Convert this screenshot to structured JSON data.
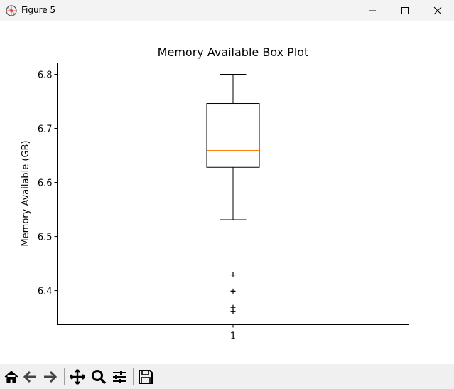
{
  "window": {
    "title": "Figure 5",
    "app_icon": "matplotlib-figure-icon",
    "controls": [
      "minimize-icon",
      "maximize-icon",
      "close-icon"
    ]
  },
  "toolbar": {
    "buttons": [
      "home-icon",
      "back-arrow-icon",
      "forward-arrow-icon",
      "pan-move-icon",
      "zoom-magnifier-icon",
      "configure-subplots-icon",
      "save-floppy-icon"
    ]
  },
  "chart_data": {
    "type": "box",
    "title": "Memory Available Box Plot",
    "xlabel": "",
    "ylabel": "Memory Available (GB)",
    "categories": [
      "1"
    ],
    "ylim": [
      6.337,
      6.821
    ],
    "yticks": [
      "6.4",
      "6.5",
      "6.6",
      "6.7",
      "6.8"
    ],
    "grid": false,
    "boxes": [
      {
        "category": "1",
        "whisker_low": 6.531,
        "q1": 6.628,
        "median": 6.659,
        "q3": 6.746,
        "whisker_high": 6.8,
        "outliers": [
          6.429,
          6.399,
          6.369,
          6.361
        ]
      }
    ],
    "colors": {
      "box": "#000000",
      "median": "#ff7f0e",
      "axes": "#000000"
    }
  }
}
